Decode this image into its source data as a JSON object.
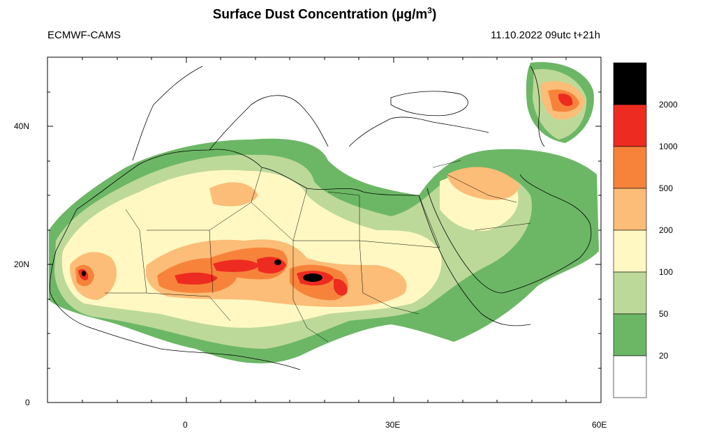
{
  "header": {
    "title_main": "Surface Dust Concentration (",
    "title_unit": "µg/m",
    "title_exp": "3",
    "title_close": ")",
    "left": "ECMWF-CAMS",
    "right": "11.10.2022 09utc t+21h"
  },
  "axes": {
    "y_ticks": [
      "40N",
      "20N",
      "0"
    ],
    "x_ticks": [
      "0",
      "30E",
      "60E"
    ]
  },
  "colorbar": {
    "levels": [
      "2000",
      "1000",
      "500",
      "200",
      "100",
      "50",
      "20"
    ],
    "colors": [
      "#000000",
      "#ee2b20",
      "#f7833b",
      "#fbbd77",
      "#fff8c2",
      "#bdd99a",
      "#6cb765",
      "#ffffff"
    ]
  },
  "palette": {
    "land": "#ffffff",
    "sea": "#ffffff",
    "border": "#000000"
  }
}
